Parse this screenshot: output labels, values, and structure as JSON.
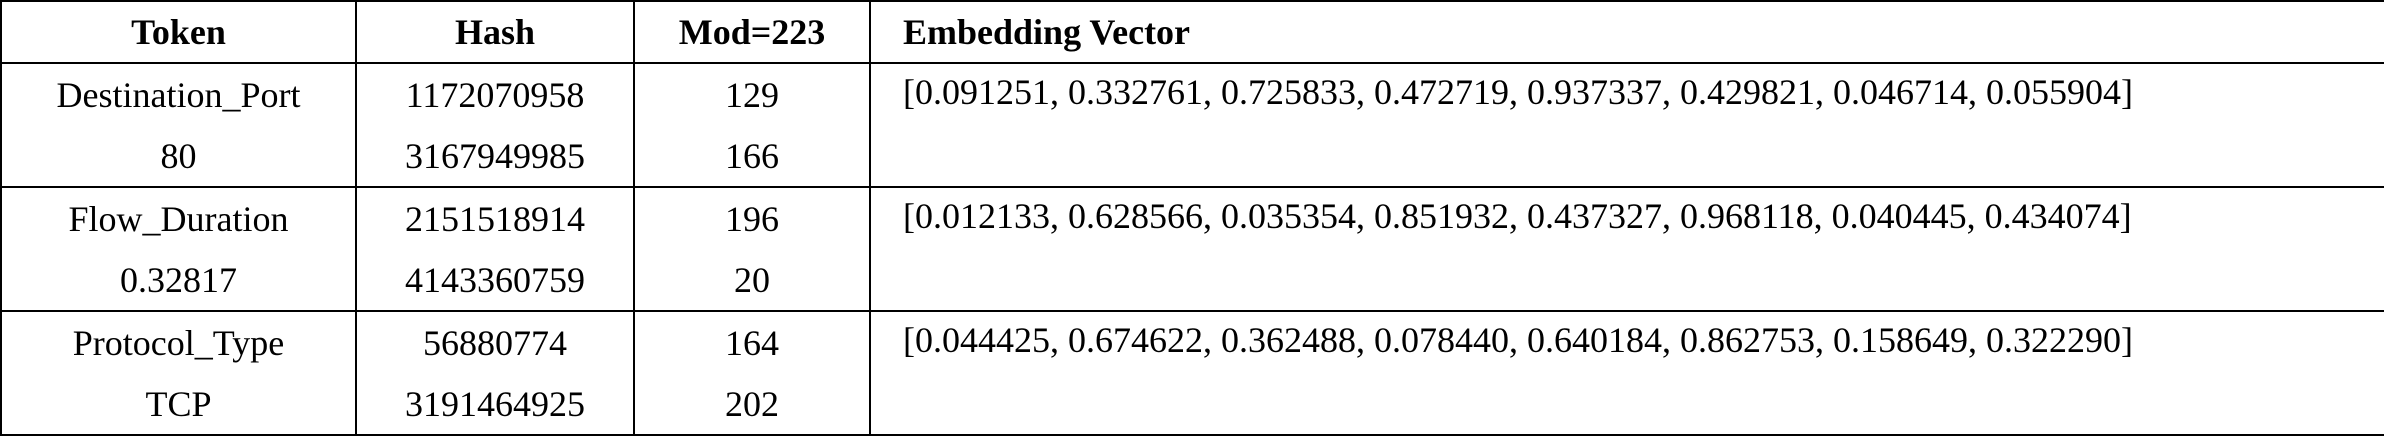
{
  "table": {
    "headers": {
      "token": "Token",
      "hash": "Hash",
      "mod": "Mod=223",
      "embedding": "Embedding Vector"
    },
    "groups": [
      {
        "rows": [
          {
            "token": "Destination_Port",
            "hash": "1172070958",
            "mod": "129"
          },
          {
            "token": "80",
            "hash": "3167949985",
            "mod": "166"
          }
        ],
        "embedding": "[0.091251, 0.332761, 0.725833, 0.472719, 0.937337, 0.429821, 0.046714, 0.055904]"
      },
      {
        "rows": [
          {
            "token": "Flow_Duration",
            "hash": "2151518914",
            "mod": "196"
          },
          {
            "token": "0.32817",
            "hash": "4143360759",
            "mod": "20"
          }
        ],
        "embedding": "[0.012133, 0.628566, 0.035354, 0.851932, 0.437327, 0.968118, 0.040445, 0.434074]"
      },
      {
        "rows": [
          {
            "token": "Protocol_Type",
            "hash": "56880774",
            "mod": "164"
          },
          {
            "token": "TCP",
            "hash": "3191464925",
            "mod": "202"
          }
        ],
        "embedding": "[0.044425, 0.674622, 0.362488, 0.078440, 0.640184, 0.862753, 0.158649, 0.322290]"
      }
    ]
  }
}
